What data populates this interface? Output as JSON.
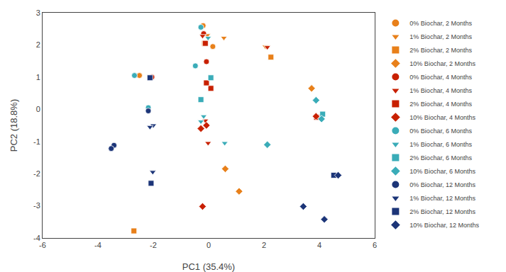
{
  "chart_data": {
    "type": "scatter",
    "xlabel": "PC1 (35.4%)",
    "ylabel": "PC2 (18.8%)",
    "xlim": [
      -6,
      6
    ],
    "ylim": [
      -4,
      3
    ],
    "xticks": [
      -6,
      -4,
      -2,
      0,
      2,
      4,
      6
    ],
    "yticks": [
      -4,
      -3,
      -2,
      -1,
      0,
      1,
      2,
      3
    ],
    "grid": false,
    "legend": "right",
    "series": [
      {
        "name": "0% Biochar, 2 Months",
        "color": "#E8801A",
        "marker": "circle",
        "x": [
          -0.2,
          0.15,
          -2.5
        ],
        "values": [
          2.6,
          1.95,
          1.05
        ]
      },
      {
        "name": "1% Biochar, 2 Months",
        "color": "#E8801A",
        "marker": "triangle-down",
        "x": [
          -0.05,
          0.55,
          2.05
        ],
        "values": [
          2.3,
          2.22,
          1.95
        ]
      },
      {
        "name": "2% Biochar, 2 Months",
        "color": "#E8801A",
        "marker": "square",
        "x": [
          -0.15,
          2.25,
          -2.7
        ],
        "values": [
          2.05,
          1.62,
          -3.78
        ]
      },
      {
        "name": "10% Biochar, 2 Months",
        "color": "#E8801A",
        "marker": "diamond",
        "x": [
          0.6,
          1.1,
          3.72
        ],
        "values": [
          -1.85,
          -2.55,
          0.65
        ]
      },
      {
        "name": "0% Biochar, 4 Months",
        "color": "#C82000",
        "marker": "circle",
        "x": [
          -0.18,
          -0.08,
          -2.05
        ],
        "values": [
          2.35,
          1.48,
          1.0
        ]
      },
      {
        "name": "1% Biochar, 4 Months",
        "color": "#C82000",
        "marker": "triangle-down",
        "x": [
          -0.22,
          -0.12,
          -0.02,
          2.12
        ],
        "values": [
          2.28,
          -0.35,
          -1.05,
          1.93
        ]
      },
      {
        "name": "2% Biochar, 4 Months",
        "color": "#C82000",
        "marker": "square",
        "x": [
          -0.12,
          0.08,
          -0.08,
          3.9
        ],
        "values": [
          2.05,
          0.65,
          0.82,
          -0.25
        ]
      },
      {
        "name": "10% Biochar, 4 Months",
        "color": "#C82000",
        "marker": "diamond",
        "x": [
          -0.08,
          -0.28,
          -0.22,
          3.88
        ],
        "values": [
          -0.5,
          -0.6,
          -3.02,
          -0.22
        ]
      },
      {
        "name": "0% Biochar, 6 Months",
        "color": "#3AACB8",
        "marker": "circle",
        "x": [
          -0.28,
          -2.68,
          -0.48,
          -2.18
        ],
        "values": [
          2.55,
          1.05,
          1.35,
          0.05
        ]
      },
      {
        "name": "1% Biochar, 6 Months",
        "color": "#3AACB8",
        "marker": "triangle-down",
        "x": [
          -0.02,
          -0.18,
          -0.28,
          0.58
        ],
        "values": [
          2.22,
          -0.22,
          -0.38,
          -1.05
        ]
      },
      {
        "name": "2% Biochar, 6 Months",
        "color": "#3AACB8",
        "marker": "square",
        "x": [
          -0.28,
          0.08,
          4.12
        ],
        "values": [
          0.3,
          0.98,
          -0.15
        ]
      },
      {
        "name": "10% Biochar, 6 Months",
        "color": "#3AACB8",
        "marker": "diamond",
        "x": [
          2.12,
          3.88,
          4.08
        ],
        "values": [
          -1.1,
          0.28,
          -0.3
        ]
      },
      {
        "name": "0% Biochar, 12 Months",
        "color": "#1C3578",
        "marker": "circle",
        "x": [
          -3.42,
          -3.52,
          -2.18
        ],
        "values": [
          -1.12,
          -1.22,
          -0.05
        ]
      },
      {
        "name": "1% Biochar, 12 Months",
        "color": "#1C3578",
        "marker": "triangle-down",
        "x": [
          -2.02,
          -2.0,
          -2.12
        ],
        "values": [
          -1.95,
          -0.5,
          -0.55
        ]
      },
      {
        "name": "2% Biochar, 12 Months",
        "color": "#1C3578",
        "marker": "square",
        "x": [
          -2.12,
          -2.08,
          4.52
        ],
        "values": [
          0.98,
          -2.3,
          -2.05
        ]
      },
      {
        "name": "10% Biochar, 12 Months",
        "color": "#1C3578",
        "marker": "diamond",
        "x": [
          3.42,
          4.18,
          4.68
        ],
        "values": [
          -3.02,
          -3.42,
          -2.05
        ]
      }
    ]
  }
}
